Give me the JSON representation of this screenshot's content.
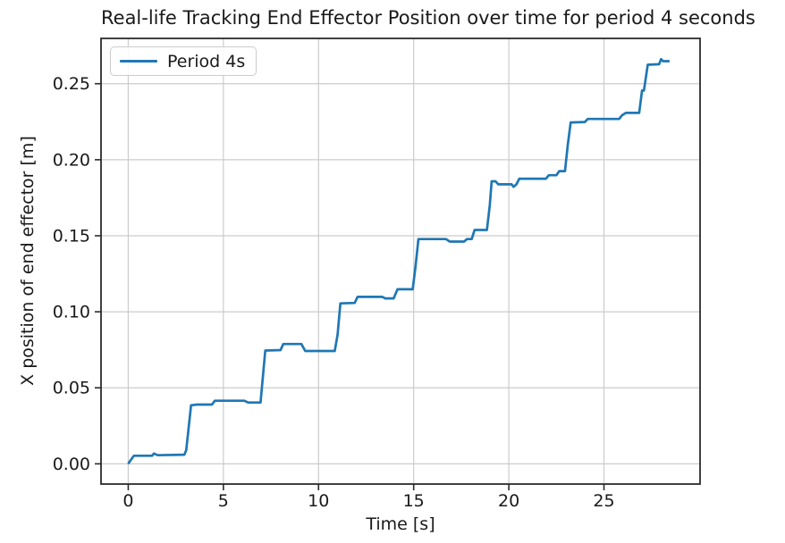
{
  "figure": {
    "background": "#ffffff",
    "colors": {
      "line": "#1f77b4",
      "grid": "#cccccc",
      "spine": "#2b2b2b",
      "text": "#1a1a1a",
      "legend_border": "#cccccc"
    }
  },
  "chart_data": {
    "type": "line",
    "title": "Real-life Tracking End Effector Position over time for period 4 seconds",
    "xlabel": "Time [s]",
    "ylabel": "X position of end effector [m]",
    "grid": true,
    "legend_position": "upper left",
    "legend": [
      "Period 4s"
    ],
    "xlim": [
      -1.43,
      30.05
    ],
    "ylim": [
      -0.0133,
      0.2798
    ],
    "xticks": [
      0,
      5,
      10,
      15,
      20,
      25
    ],
    "xtick_labels": [
      "0",
      "5",
      "10",
      "15",
      "20",
      "25"
    ],
    "yticks": [
      0.0,
      0.05,
      0.1,
      0.15,
      0.2,
      0.25
    ],
    "ytick_labels": [
      "0.00",
      "0.05",
      "0.10",
      "0.15",
      "0.20",
      "0.25"
    ],
    "series": [
      {
        "name": "Period 4s",
        "color": "#1f77b4",
        "points": [
          [
            0.0,
            0.0
          ],
          [
            0.1,
            0.002
          ],
          [
            0.3,
            0.0053
          ],
          [
            1.25,
            0.0053
          ],
          [
            1.35,
            0.0068
          ],
          [
            1.55,
            0.0057
          ],
          [
            2.95,
            0.006
          ],
          [
            3.05,
            0.009
          ],
          [
            3.3,
            0.0385
          ],
          [
            3.6,
            0.039
          ],
          [
            4.4,
            0.039
          ],
          [
            4.55,
            0.0415
          ],
          [
            6.1,
            0.0415
          ],
          [
            6.3,
            0.0403
          ],
          [
            6.95,
            0.0403
          ],
          [
            7.2,
            0.0745
          ],
          [
            8.0,
            0.0748
          ],
          [
            8.15,
            0.0788
          ],
          [
            9.1,
            0.0788
          ],
          [
            9.3,
            0.0742
          ],
          [
            10.85,
            0.0742
          ],
          [
            11.0,
            0.085
          ],
          [
            11.15,
            0.1055
          ],
          [
            11.9,
            0.1058
          ],
          [
            12.05,
            0.1098
          ],
          [
            13.35,
            0.1098
          ],
          [
            13.5,
            0.1088
          ],
          [
            13.95,
            0.1088
          ],
          [
            14.15,
            0.1148
          ],
          [
            14.95,
            0.1148
          ],
          [
            15.1,
            0.13
          ],
          [
            15.25,
            0.1478
          ],
          [
            16.7,
            0.1478
          ],
          [
            16.9,
            0.1462
          ],
          [
            17.65,
            0.1462
          ],
          [
            17.8,
            0.1478
          ],
          [
            18.05,
            0.1478
          ],
          [
            18.2,
            0.1538
          ],
          [
            18.85,
            0.1538
          ],
          [
            19.0,
            0.17
          ],
          [
            19.1,
            0.1858
          ],
          [
            19.3,
            0.1858
          ],
          [
            19.45,
            0.1838
          ],
          [
            20.15,
            0.1838
          ],
          [
            20.25,
            0.1822
          ],
          [
            20.4,
            0.1838
          ],
          [
            20.55,
            0.1875
          ],
          [
            21.95,
            0.1875
          ],
          [
            22.1,
            0.1898
          ],
          [
            22.5,
            0.1898
          ],
          [
            22.65,
            0.1925
          ],
          [
            22.95,
            0.1925
          ],
          [
            23.1,
            0.21
          ],
          [
            23.25,
            0.2245
          ],
          [
            24.0,
            0.2248
          ],
          [
            24.15,
            0.2268
          ],
          [
            25.8,
            0.2268
          ],
          [
            25.95,
            0.2292
          ],
          [
            26.15,
            0.2308
          ],
          [
            26.85,
            0.2308
          ],
          [
            27.0,
            0.2455
          ],
          [
            27.1,
            0.2455
          ],
          [
            27.3,
            0.2625
          ],
          [
            27.9,
            0.2628
          ],
          [
            28.0,
            0.2662
          ],
          [
            28.1,
            0.2648
          ],
          [
            28.45,
            0.2648
          ]
        ]
      }
    ]
  }
}
